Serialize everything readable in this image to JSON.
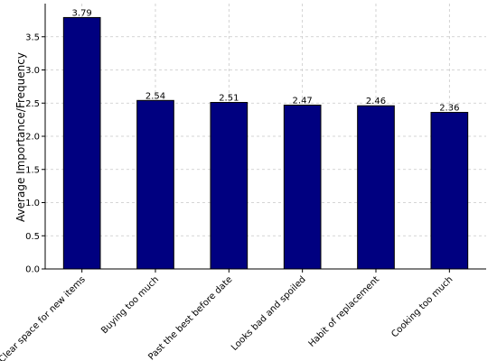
{
  "chart_data": {
    "type": "bar",
    "categories": [
      "Clear space for new items",
      "Buying too much",
      "Past the best before date",
      "Looks bad and spoiled",
      "Habit of replacement",
      "Cooking too much"
    ],
    "values": [
      3.79,
      2.54,
      2.51,
      2.47,
      2.46,
      2.36
    ],
    "value_labels": [
      "3.79",
      "2.54",
      "2.51",
      "2.47",
      "2.46",
      "2.36"
    ],
    "title": "",
    "xlabel": "",
    "ylabel": "Average Importance/Frequency",
    "ylim": [
      0,
      4.0
    ],
    "yticks": [
      0.0,
      0.5,
      1.0,
      1.5,
      2.0,
      2.5,
      3.0,
      3.5
    ],
    "ytick_labels": [
      "0.0",
      "0.5",
      "1.0",
      "1.5",
      "2.0",
      "2.5",
      "3.0",
      "3.5"
    ],
    "grid": true,
    "bar_color": "#000080"
  }
}
